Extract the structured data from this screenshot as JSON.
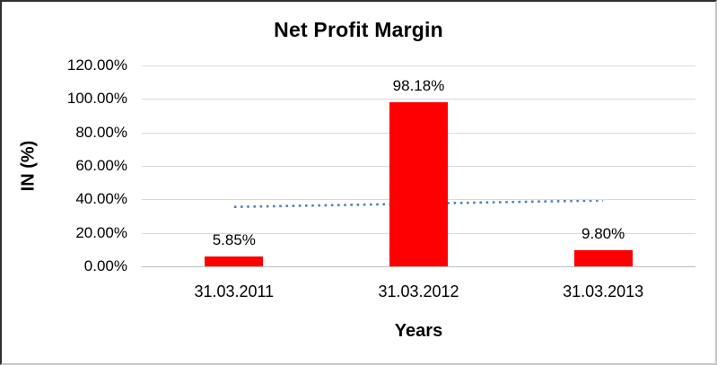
{
  "chart_data": {
    "type": "bar",
    "title": "Net Profit Margin",
    "xlabel": "Years",
    "ylabel": "IN (%)",
    "categories": [
      "31.03.2011",
      "31.03.2012",
      "31.03.2013"
    ],
    "values": [
      5.85,
      98.18,
      9.8
    ],
    "data_labels": [
      "5.85%",
      "98.18%",
      "9.80%"
    ],
    "y_tick_values": [
      0,
      20,
      40,
      60,
      80,
      100,
      120
    ],
    "y_ticks": [
      "0.00%",
      "20.00%",
      "40.00%",
      "60.00%",
      "80.00%",
      "100.00%",
      "120.00%"
    ],
    "ylim": [
      0,
      120
    ],
    "grid": true,
    "legend": "none",
    "bar_color": "#FF0000",
    "trendline": {
      "type": "linear",
      "style": "dotted",
      "color": "#4F81BD",
      "start_value": 35.5,
      "end_value": 39.4
    }
  }
}
